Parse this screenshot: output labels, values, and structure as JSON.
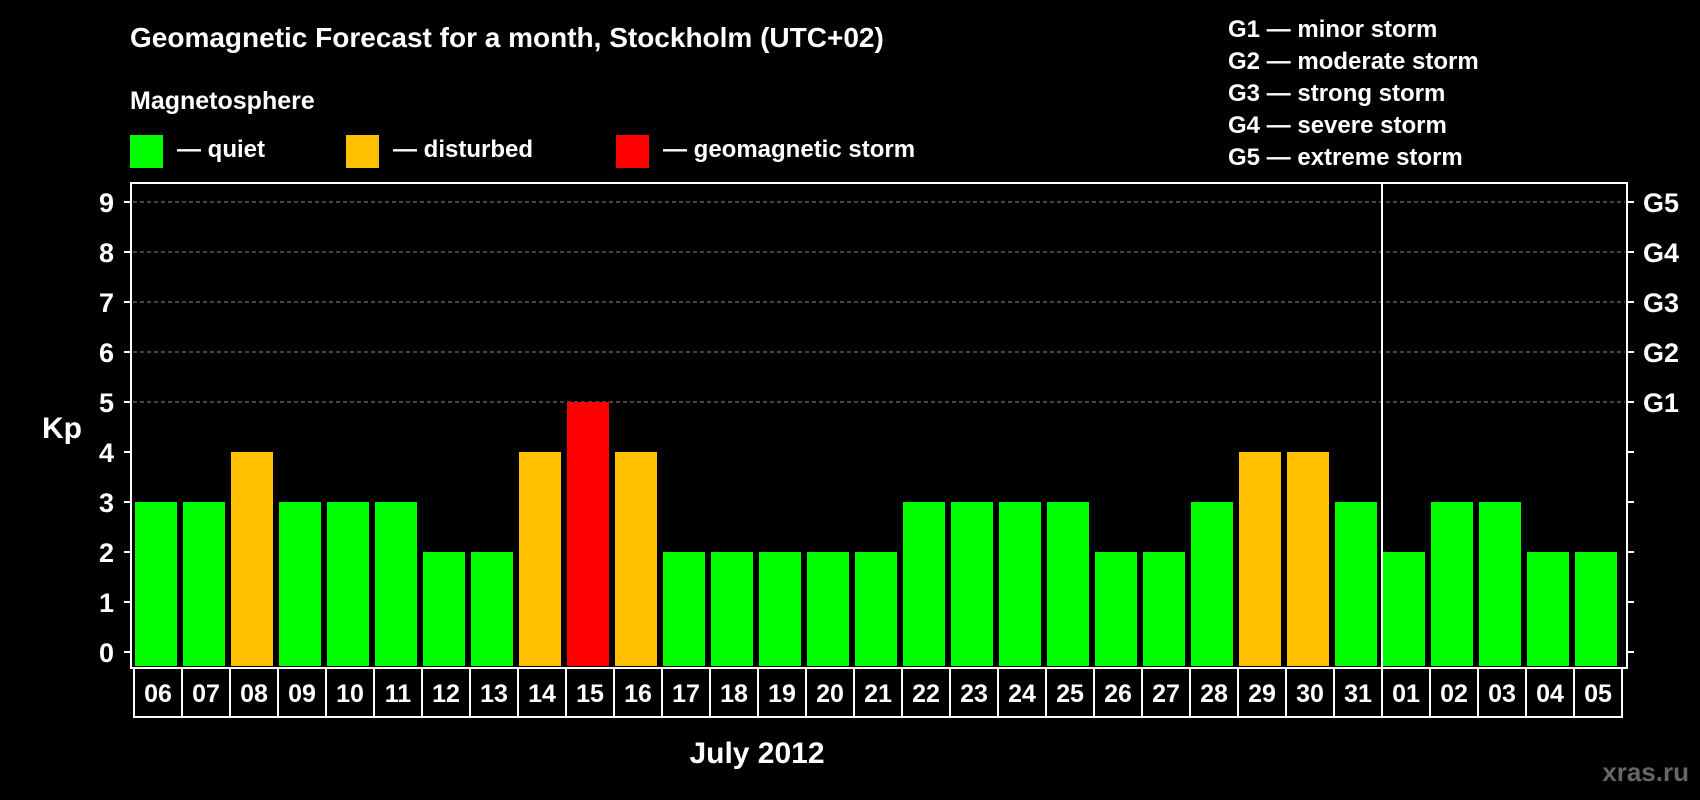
{
  "chart_data": {
    "type": "bar",
    "title": "Geomagnetic Forecast for a month, Stockholm (UTC+02)",
    "legend_title": "Magnetosphere",
    "legend": [
      {
        "label": "— quiet",
        "color": "#00ff00"
      },
      {
        "label": "— disturbed",
        "color": "#ffc000"
      },
      {
        "label": "— geomagnetic storm",
        "color": "#ff0000"
      }
    ],
    "storm_scale": [
      "G1 — minor storm",
      "G2 — moderate storm",
      "G3 — strong storm",
      "G4 — severe storm",
      "G5 — extreme storm"
    ],
    "ylabel": "Kp",
    "ylim": [
      0,
      9
    ],
    "yticks": [
      "0",
      "1",
      "2",
      "3",
      "4",
      "5",
      "6",
      "7",
      "8",
      "9"
    ],
    "right_ticks": [
      {
        "kp": 5,
        "label": "G1"
      },
      {
        "kp": 6,
        "label": "G2"
      },
      {
        "kp": 7,
        "label": "G3"
      },
      {
        "kp": 8,
        "label": "G4"
      },
      {
        "kp": 9,
        "label": "G5"
      }
    ],
    "grid": "dashed at Kp 5-9",
    "xlabel": "July 2012",
    "month_divider_after": "31",
    "categories": [
      "06",
      "07",
      "08",
      "09",
      "10",
      "11",
      "12",
      "13",
      "14",
      "15",
      "16",
      "17",
      "18",
      "19",
      "20",
      "21",
      "22",
      "23",
      "24",
      "25",
      "26",
      "27",
      "28",
      "29",
      "30",
      "31",
      "01",
      "02",
      "03",
      "04",
      "05"
    ],
    "values": [
      3,
      3,
      4,
      3,
      3,
      3,
      2,
      2,
      4,
      5,
      4,
      2,
      2,
      2,
      2,
      2,
      3,
      3,
      3,
      3,
      2,
      2,
      3,
      4,
      4,
      3,
      2,
      3,
      3,
      2,
      2
    ],
    "colors": {
      "quiet": "#00ff00",
      "disturbed": "#ffc000",
      "storm": "#ff0000"
    },
    "watermark": "xras.ru"
  }
}
